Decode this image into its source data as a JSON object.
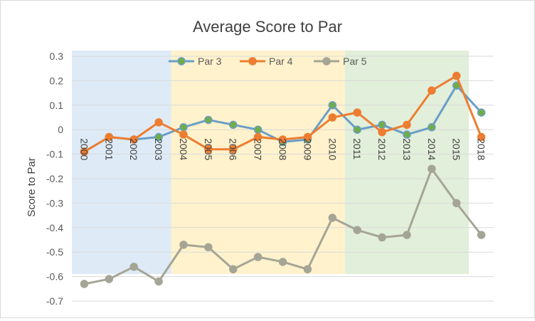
{
  "chart_data": {
    "type": "line",
    "title": "Average Score to Par",
    "xlabel": "",
    "ylabel": "Score to Par",
    "ylim": [
      -0.7,
      0.3
    ],
    "yticks": [
      0.3,
      0.2,
      0.1,
      0,
      -0.1,
      -0.2,
      -0.3,
      -0.4,
      -0.5,
      -0.6,
      -0.7
    ],
    "yticklabels": [
      "0.3",
      "0.2",
      "0.1",
      "0",
      "-0.1",
      "-0.2",
      "-0.3",
      "-0.4",
      "-0.5",
      "-0.6",
      "-0.7"
    ],
    "categories": [
      "2000",
      "2001",
      "2002",
      "2003",
      "2004",
      "2005",
      "2006",
      "2007",
      "2008",
      "2009",
      "2010",
      "2011",
      "2012",
      "2013",
      "2014",
      "2015",
      "2018"
    ],
    "grid": "horizontal",
    "legend": "top-center",
    "series": [
      {
        "name": "Par 3",
        "color": "#6a9ec7",
        "marker_color": "#70ad47",
        "values": [
          -0.09,
          -0.03,
          -0.04,
          -0.03,
          0.01,
          0.04,
          0.02,
          0.0,
          -0.05,
          -0.04,
          0.1,
          0.0,
          0.02,
          -0.02,
          0.01,
          0.18,
          0.07
        ]
      },
      {
        "name": "Par 4",
        "color": "#ed7d31",
        "marker_color": "#ed7d31",
        "values": [
          -0.09,
          -0.03,
          -0.04,
          0.03,
          -0.02,
          -0.08,
          -0.08,
          -0.03,
          -0.04,
          -0.03,
          0.05,
          0.07,
          -0.01,
          0.02,
          0.16,
          0.22,
          -0.03
        ]
      },
      {
        "name": "Par 5",
        "color": "#a5a596",
        "marker_color": "#a5a596",
        "values": [
          -0.63,
          -0.61,
          -0.56,
          -0.62,
          -0.47,
          -0.48,
          -0.57,
          -0.52,
          -0.54,
          -0.57,
          -0.36,
          -0.41,
          -0.44,
          -0.43,
          -0.16,
          -0.3,
          -0.43
        ]
      }
    ],
    "bands": [
      {
        "name": "band-1",
        "color": "#deebf7",
        "from": "2000",
        "to": "2003"
      },
      {
        "name": "band-2",
        "color": "#fff2cc",
        "from": "2004",
        "to": "2010"
      },
      {
        "name": "band-3",
        "color": "#e2efda",
        "from": "2011",
        "to": "2015"
      }
    ]
  }
}
